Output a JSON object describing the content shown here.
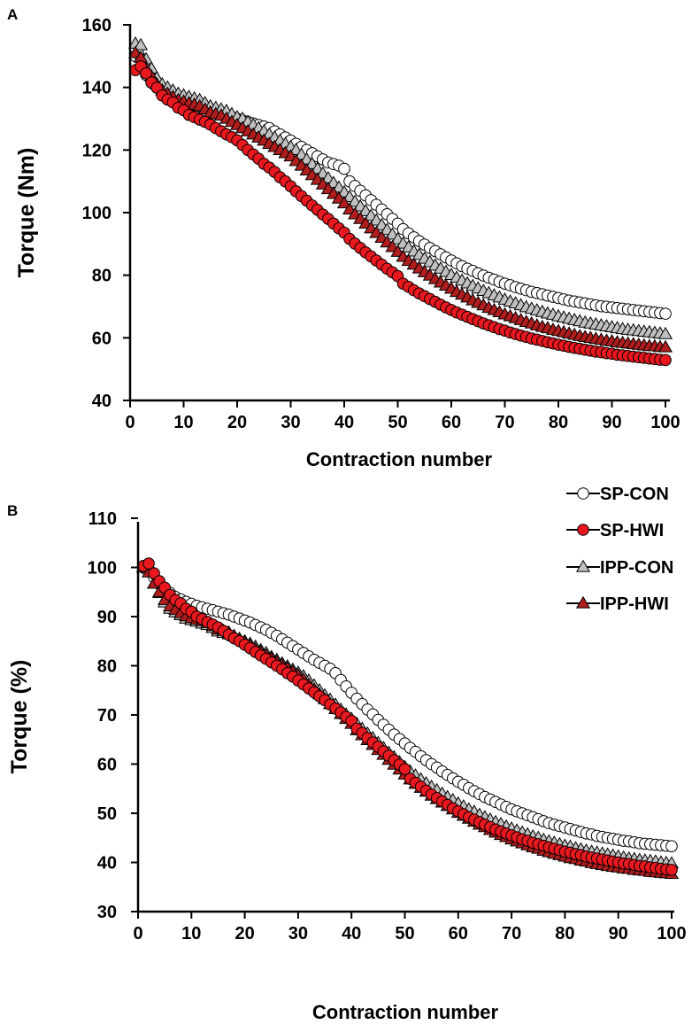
{
  "colors": {
    "sp_con_fill": "#ffffff",
    "sp_hwi_fill": "#e8181e",
    "ipp_con_fill": "#c0c0c0",
    "ipp_hwi_fill": "#b01d1d",
    "stroke": "#000000"
  },
  "legend": [
    {
      "label": "SP-CON",
      "marker": "circle",
      "fill": "#ffffff"
    },
    {
      "label": "SP-HWI",
      "marker": "circle",
      "fill": "#e8181e"
    },
    {
      "label": "IPP-CON",
      "marker": "triangle",
      "fill": "#c0c0c0"
    },
    {
      "label": "IPP-HWI",
      "marker": "triangle",
      "fill": "#b01d1d"
    }
  ],
  "chart_data": [
    {
      "panel": "A",
      "type": "scatter",
      "xlabel": "Contraction number",
      "ylabel": "Torque (Nm)",
      "xlim": [
        0,
        100
      ],
      "ylim": [
        40,
        160
      ],
      "xticks": [
        0,
        10,
        20,
        30,
        40,
        50,
        60,
        70,
        80,
        90,
        100
      ],
      "yticks": [
        40,
        60,
        80,
        100,
        120,
        140,
        160
      ],
      "x_start": 1,
      "series": [
        {
          "name": "SP-CON",
          "marker": "circle",
          "values": [
            150.0,
            149.0,
            144.0,
            141.5,
            141.0,
            139.0,
            138.0,
            137.5,
            136.5,
            135.5,
            135.0,
            134.5,
            134.0,
            133.5,
            133.0,
            132.5,
            132.0,
            131.0,
            130.5,
            130.0,
            129.5,
            129.0,
            128.5,
            128.0,
            127.5,
            127.0,
            126.0,
            125.0,
            124.0,
            123.0,
            122.0,
            121.0,
            120.0,
            119.0,
            118.0,
            117.0,
            116.0,
            115.5,
            115.0,
            114.0,
            110.0,
            108.5,
            107.0,
            105.5,
            104.0,
            102.5,
            101.0,
            99.5,
            98.0,
            96.5,
            94.7,
            93.4,
            92.1,
            90.9,
            89.8,
            88.7,
            87.7,
            86.7,
            85.7,
            84.7,
            83.8,
            82.9,
            82.1,
            81.4,
            80.6,
            79.9,
            79.2,
            78.6,
            77.9,
            77.3,
            76.8,
            76.2,
            75.7,
            75.2,
            74.7,
            74.3,
            73.9,
            73.5,
            73.1,
            72.7,
            72.3,
            71.9,
            71.6,
            71.3,
            71.0,
            70.7,
            70.4,
            70.1,
            69.9,
            69.7,
            69.5,
            69.3,
            69.1,
            68.9,
            68.7,
            68.5,
            68.3,
            68.1,
            67.9,
            67.7
          ]
        },
        {
          "name": "SP-HWI",
          "marker": "circle",
          "values": [
            145.5,
            146.7,
            144.5,
            141.6,
            139.9,
            137.4,
            136.1,
            135.2,
            133.5,
            132.7,
            131.2,
            130.5,
            129.7,
            129.0,
            128.1,
            127.0,
            126.0,
            125.0,
            124.1,
            123.1,
            121.6,
            120.0,
            118.6,
            117.2,
            115.6,
            114.4,
            113.0,
            111.3,
            110.0,
            108.4,
            106.8,
            105.3,
            103.8,
            102.3,
            100.9,
            99.4,
            98.0,
            96.5,
            95.0,
            93.6,
            91.6,
            90.1,
            88.7,
            87.3,
            86.0,
            84.7,
            83.4,
            82.1,
            80.9,
            79.7,
            77.3,
            76.3,
            75.2,
            74.2,
            73.3,
            72.4,
            71.5,
            70.6,
            69.7,
            68.9,
            68.1,
            67.4,
            66.7,
            66.0,
            65.3,
            64.6,
            64.0,
            63.4,
            62.8,
            62.3,
            61.7,
            61.2,
            60.7,
            60.3,
            59.8,
            59.4,
            59.0,
            58.6,
            58.2,
            57.8,
            57.5,
            57.1,
            56.8,
            56.5,
            56.2,
            55.9,
            55.6,
            55.4,
            55.1,
            54.9,
            54.6,
            54.4,
            54.2,
            54.0,
            53.8,
            53.6,
            53.4,
            53.2,
            53.0,
            52.9
          ]
        },
        {
          "name": "IPP-CON",
          "marker": "triangle",
          "values": [
            154.0,
            153.5,
            149.0,
            146.0,
            143.0,
            141.0,
            140.0,
            139.0,
            138.0,
            137.5,
            137.0,
            136.5,
            136.0,
            135.0,
            134.0,
            133.5,
            133.0,
            132.5,
            131.5,
            130.5,
            130.0,
            129.0,
            128.0,
            127.0,
            126.0,
            125.0,
            124.0,
            123.0,
            122.0,
            121.0,
            120.0,
            118.5,
            117.0,
            115.5,
            114.0,
            112.5,
            111.0,
            109.5,
            108.0,
            106.5,
            105.0,
            103.5,
            102.0,
            100.5,
            99.0,
            97.5,
            96.0,
            94.5,
            93.0,
            91.5,
            90.1,
            88.9,
            87.6,
            86.5,
            85.3,
            84.2,
            83.1,
            82.1,
            81.1,
            80.1,
            79.2,
            78.3,
            77.4,
            76.6,
            75.8,
            75.0,
            74.3,
            73.6,
            72.9,
            72.2,
            71.6,
            71.0,
            70.4,
            69.8,
            69.3,
            68.8,
            68.3,
            67.8,
            67.4,
            66.9,
            66.5,
            66.1,
            65.7,
            65.3,
            64.9,
            64.6,
            64.3,
            64.0,
            63.7,
            63.4,
            63.1,
            62.8,
            62.6,
            62.4,
            62.2,
            62.0,
            61.8,
            61.6,
            61.4,
            61.2
          ]
        },
        {
          "name": "IPP-HWI",
          "marker": "triangle",
          "values": [
            151.0,
            149.5,
            146.0,
            143.5,
            141.0,
            139.0,
            138.0,
            137.0,
            136.0,
            135.5,
            135.0,
            134.5,
            134.0,
            133.0,
            132.0,
            131.5,
            131.0,
            130.0,
            129.0,
            128.0,
            127.0,
            126.0,
            125.0,
            124.0,
            123.0,
            122.0,
            121.0,
            120.0,
            119.0,
            118.0,
            116.5,
            115.0,
            113.5,
            112.0,
            110.5,
            109.0,
            107.5,
            106.0,
            104.5,
            103.0,
            101.0,
            99.5,
            98.0,
            96.5,
            95.0,
            93.5,
            92.0,
            90.5,
            89.0,
            87.5,
            85.9,
            84.6,
            83.4,
            82.2,
            81.0,
            79.9,
            78.8,
            77.7,
            76.7,
            75.7,
            74.7,
            73.8,
            72.9,
            72.0,
            71.2,
            70.4,
            69.6,
            68.9,
            68.2,
            67.5,
            66.9,
            66.3,
            65.7,
            65.1,
            64.6,
            64.0,
            63.5,
            63.1,
            62.6,
            62.2,
            61.8,
            61.4,
            61.0,
            60.6,
            60.3,
            60.0,
            59.7,
            59.4,
            59.1,
            58.9,
            58.6,
            58.4,
            58.2,
            58.0,
            57.8,
            57.6,
            57.4,
            57.3,
            57.1,
            57.0
          ]
        }
      ]
    },
    {
      "panel": "B",
      "type": "scatter",
      "xlabel": "Contraction number",
      "ylabel": "Torque (%)",
      "xlim": [
        0,
        100
      ],
      "ylim": [
        30,
        110
      ],
      "xticks": [
        0,
        10,
        20,
        30,
        40,
        50,
        60,
        70,
        80,
        90,
        100
      ],
      "yticks": [
        30,
        40,
        50,
        60,
        70,
        80,
        90,
        100,
        110
      ],
      "x_start": 1,
      "series": [
        {
          "name": "SP-CON",
          "marker": "circle",
          "values": [
            100.0,
            99.6,
            98.0,
            96.6,
            95.8,
            94.8,
            94.0,
            93.5,
            93.0,
            92.6,
            92.2,
            91.9,
            91.6,
            91.3,
            91.0,
            90.7,
            90.4,
            90.0,
            89.6,
            89.2,
            88.8,
            88.3,
            87.8,
            87.3,
            86.7,
            86.1,
            85.4,
            84.7,
            84.0,
            83.3,
            82.6,
            81.9,
            81.2,
            80.6,
            80.0,
            79.4,
            78.5,
            77.1,
            75.8,
            74.5,
            73.3,
            72.2,
            71.1,
            70.1,
            69.0,
            68.0,
            67.0,
            66.0,
            65.1,
            64.2,
            63.3,
            62.5,
            61.6,
            60.8,
            60.0,
            59.3,
            58.5,
            57.8,
            57.1,
            56.4,
            55.8,
            55.1,
            54.5,
            53.9,
            53.3,
            52.8,
            52.3,
            51.8,
            51.3,
            50.8,
            50.4,
            50.0,
            49.6,
            49.2,
            48.8,
            48.4,
            48.0,
            47.7,
            47.4,
            47.1,
            46.8,
            46.5,
            46.2,
            45.9,
            45.7,
            45.4,
            45.2,
            45.0,
            44.8,
            44.6,
            44.4,
            44.3,
            44.1,
            43.9,
            43.8,
            43.7,
            43.6,
            43.5,
            43.4,
            43.3
          ]
        },
        {
          "name": "SP-HWI",
          "marker": "circle",
          "values": [
            100.3,
            100.8,
            98.8,
            97.2,
            95.9,
            94.4,
            93.4,
            92.7,
            91.6,
            91.0,
            90.0,
            89.5,
            88.9,
            88.4,
            87.8,
            87.1,
            86.3,
            85.6,
            85.0,
            84.3,
            83.6,
            82.8,
            82.1,
            81.4,
            80.7,
            80.0,
            79.3,
            78.5,
            77.8,
            77.0,
            76.2,
            75.4,
            74.6,
            73.8,
            73.0,
            72.1,
            71.3,
            70.5,
            69.6,
            68.8,
            67.2,
            66.3,
            65.3,
            64.4,
            63.5,
            62.6,
            61.7,
            60.8,
            59.9,
            59.0,
            57.0,
            56.2,
            55.4,
            54.6,
            53.8,
            53.1,
            52.4,
            51.7,
            51.0,
            50.4,
            49.8,
            49.2,
            48.7,
            48.2,
            47.7,
            47.2,
            46.7,
            46.3,
            45.9,
            45.5,
            45.1,
            44.7,
            44.4,
            44.0,
            43.7,
            43.4,
            43.1,
            42.8,
            42.5,
            42.2,
            42.0,
            41.7,
            41.5,
            41.2,
            41.0,
            40.8,
            40.6,
            40.4,
            40.2,
            40.0,
            39.8,
            39.7,
            39.5,
            39.3,
            39.2,
            39.0,
            38.9,
            38.7,
            38.6,
            38.5
          ]
        },
        {
          "name": "IPP-CON",
          "marker": "triangle",
          "values": [
            100.0,
            99.7,
            96.7,
            94.8,
            92.9,
            91.6,
            90.9,
            90.3,
            89.6,
            89.3,
            89.0,
            88.6,
            88.3,
            87.7,
            87.0,
            86.7,
            86.4,
            86.0,
            85.5,
            85.0,
            84.5,
            83.9,
            83.2,
            82.6,
            81.8,
            81.2,
            80.5,
            79.9,
            79.2,
            78.6,
            77.9,
            77.0,
            76.0,
            75.0,
            74.0,
            73.1,
            72.1,
            71.1,
            70.1,
            69.2,
            68.2,
            67.2,
            66.2,
            65.3,
            64.3,
            63.3,
            62.3,
            61.4,
            60.4,
            59.4,
            58.5,
            57.7,
            56.9,
            56.1,
            55.4,
            54.7,
            54.0,
            53.3,
            52.7,
            52.0,
            51.4,
            50.8,
            50.3,
            49.7,
            49.2,
            48.7,
            48.2,
            47.8,
            47.3,
            46.9,
            46.5,
            46.1,
            45.7,
            45.3,
            45.0,
            44.6,
            44.3,
            44.0,
            43.7,
            43.4,
            43.2,
            42.9,
            42.7,
            42.4,
            42.2,
            42.0,
            41.8,
            41.6,
            41.4,
            41.2,
            41.0,
            40.8,
            40.7,
            40.5,
            40.4,
            40.3,
            40.2,
            40.0,
            39.9,
            39.8
          ]
        },
        {
          "name": "IPP-HWI",
          "marker": "triangle",
          "values": [
            100.0,
            99.0,
            96.7,
            95.0,
            93.4,
            92.1,
            91.4,
            90.7,
            90.1,
            89.7,
            89.4,
            89.1,
            88.7,
            88.1,
            87.4,
            87.1,
            86.8,
            86.1,
            85.4,
            84.8,
            84.1,
            83.4,
            82.8,
            82.1,
            81.5,
            80.8,
            80.1,
            79.5,
            78.8,
            78.1,
            77.2,
            76.2,
            75.2,
            74.2,
            73.2,
            72.2,
            71.2,
            70.2,
            69.2,
            68.2,
            66.9,
            65.9,
            64.9,
            63.9,
            62.9,
            61.9,
            60.9,
            59.9,
            58.9,
            57.9,
            56.9,
            56.0,
            55.2,
            54.4,
            53.6,
            52.9,
            52.2,
            51.5,
            50.8,
            50.1,
            49.5,
            48.9,
            48.3,
            47.7,
            47.2,
            46.6,
            46.1,
            45.6,
            45.2,
            44.7,
            44.3,
            43.9,
            43.5,
            43.1,
            42.8,
            42.4,
            42.1,
            41.8,
            41.5,
            41.2,
            40.9,
            40.7,
            40.4,
            40.2,
            39.9,
            39.7,
            39.5,
            39.3,
            39.1,
            39.0,
            38.8,
            38.7,
            38.5,
            38.4,
            38.3,
            38.1,
            38.0,
            37.9,
            37.8,
            37.7
          ]
        }
      ]
    }
  ]
}
